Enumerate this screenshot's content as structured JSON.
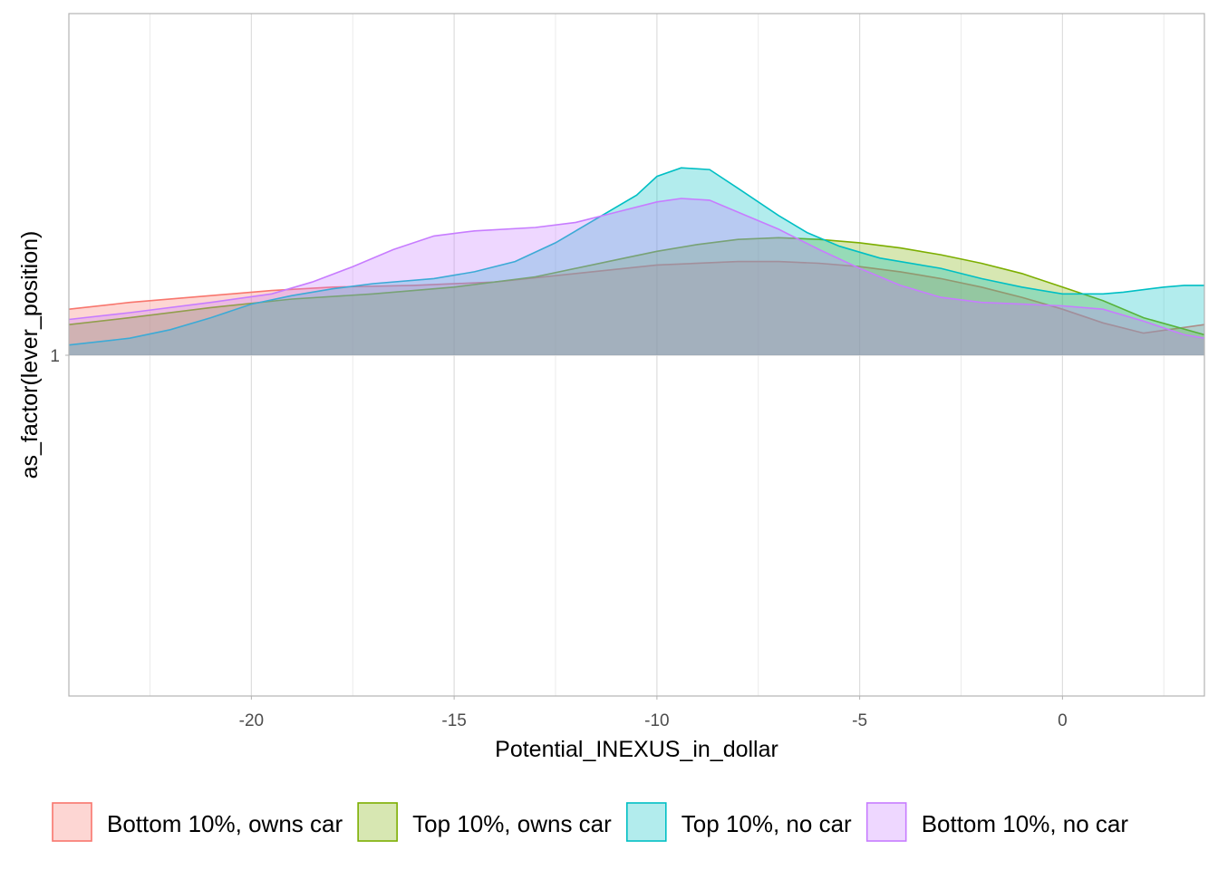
{
  "chart_data": {
    "type": "area",
    "title": "",
    "xlabel": "Potential_INEXUS_in_dollar",
    "ylabel": "as_factor(lever_position)",
    "xlim": [
      -24.5,
      3.5
    ],
    "x_ticks": [
      -20,
      -15,
      -10,
      -5,
      0
    ],
    "x_tick_labels": [
      "-20",
      "-15",
      "-10",
      "-5",
      "0"
    ],
    "y_categories": [
      "1"
    ],
    "grid": true,
    "legend_position": "bottom",
    "series": [
      {
        "name": "Bottom 10%, owns car",
        "color": "#F8766D",
        "fill": "#F8766D",
        "points": [
          [
            -24.5,
            0.135
          ],
          [
            -23,
            0.155
          ],
          [
            -21,
            0.175
          ],
          [
            -19.5,
            0.19
          ],
          [
            -18,
            0.2
          ],
          [
            -16,
            0.205
          ],
          [
            -14,
            0.215
          ],
          [
            -12,
            0.24
          ],
          [
            -10,
            0.265
          ],
          [
            -8,
            0.275
          ],
          [
            -7,
            0.275
          ],
          [
            -6,
            0.27
          ],
          [
            -5,
            0.26
          ],
          [
            -4,
            0.245
          ],
          [
            -3,
            0.225
          ],
          [
            -2,
            0.2
          ],
          [
            -1,
            0.17
          ],
          [
            0,
            0.135
          ],
          [
            1,
            0.095
          ],
          [
            2,
            0.065
          ],
          [
            3.5,
            0.09
          ]
        ]
      },
      {
        "name": "Top 10%, owns car",
        "color": "#7CAE00",
        "fill": "#7CAE00",
        "points": [
          [
            -24.5,
            0.09
          ],
          [
            -23,
            0.11
          ],
          [
            -21,
            0.14
          ],
          [
            -19,
            0.165
          ],
          [
            -17,
            0.18
          ],
          [
            -15,
            0.2
          ],
          [
            -13,
            0.23
          ],
          [
            -11,
            0.28
          ],
          [
            -10,
            0.305
          ],
          [
            -9,
            0.325
          ],
          [
            -8,
            0.34
          ],
          [
            -7,
            0.345
          ],
          [
            -6,
            0.34
          ],
          [
            -5,
            0.33
          ],
          [
            -4,
            0.315
          ],
          [
            -3,
            0.295
          ],
          [
            -2,
            0.27
          ],
          [
            -1,
            0.24
          ],
          [
            0,
            0.2
          ],
          [
            1,
            0.16
          ],
          [
            2,
            0.11
          ],
          [
            3.5,
            0.06
          ]
        ]
      },
      {
        "name": "Top 10%, no car",
        "color": "#00BFC4",
        "fill": "#00BFC4",
        "points": [
          [
            -24.5,
            0.03
          ],
          [
            -23,
            0.05
          ],
          [
            -22,
            0.075
          ],
          [
            -21,
            0.11
          ],
          [
            -20,
            0.15
          ],
          [
            -19,
            0.175
          ],
          [
            -18,
            0.195
          ],
          [
            -17,
            0.21
          ],
          [
            -15.5,
            0.225
          ],
          [
            -14.5,
            0.245
          ],
          [
            -13.5,
            0.275
          ],
          [
            -12.5,
            0.33
          ],
          [
            -11.5,
            0.4
          ],
          [
            -10.5,
            0.47
          ],
          [
            -10,
            0.525
          ],
          [
            -9.4,
            0.55
          ],
          [
            -8.7,
            0.545
          ],
          [
            -8,
            0.49
          ],
          [
            -7,
            0.41
          ],
          [
            -6.3,
            0.36
          ],
          [
            -5.5,
            0.32
          ],
          [
            -4.5,
            0.285
          ],
          [
            -3,
            0.255
          ],
          [
            -2,
            0.225
          ],
          [
            -1,
            0.2
          ],
          [
            0,
            0.18
          ],
          [
            1,
            0.18
          ],
          [
            1.5,
            0.185
          ],
          [
            2.5,
            0.2
          ],
          [
            3,
            0.205
          ],
          [
            3.5,
            0.205
          ]
        ]
      },
      {
        "name": "Bottom 10%, no car",
        "color": "#C77CFF",
        "fill": "#C77CFF",
        "points": [
          [
            -24.5,
            0.105
          ],
          [
            -23,
            0.125
          ],
          [
            -21,
            0.155
          ],
          [
            -19.5,
            0.18
          ],
          [
            -18.5,
            0.215
          ],
          [
            -17.5,
            0.26
          ],
          [
            -16.5,
            0.31
          ],
          [
            -15.5,
            0.35
          ],
          [
            -14.5,
            0.365
          ],
          [
            -13,
            0.375
          ],
          [
            -12,
            0.39
          ],
          [
            -11,
            0.42
          ],
          [
            -10,
            0.45
          ],
          [
            -9.4,
            0.46
          ],
          [
            -8.7,
            0.455
          ],
          [
            -8,
            0.42
          ],
          [
            -7,
            0.37
          ],
          [
            -6,
            0.31
          ],
          [
            -5,
            0.255
          ],
          [
            -4,
            0.205
          ],
          [
            -3,
            0.17
          ],
          [
            -2,
            0.155
          ],
          [
            -1,
            0.15
          ],
          [
            0,
            0.145
          ],
          [
            1,
            0.135
          ],
          [
            2,
            0.1
          ],
          [
            3,
            0.06
          ],
          [
            3.5,
            0.05
          ]
        ]
      }
    ]
  }
}
